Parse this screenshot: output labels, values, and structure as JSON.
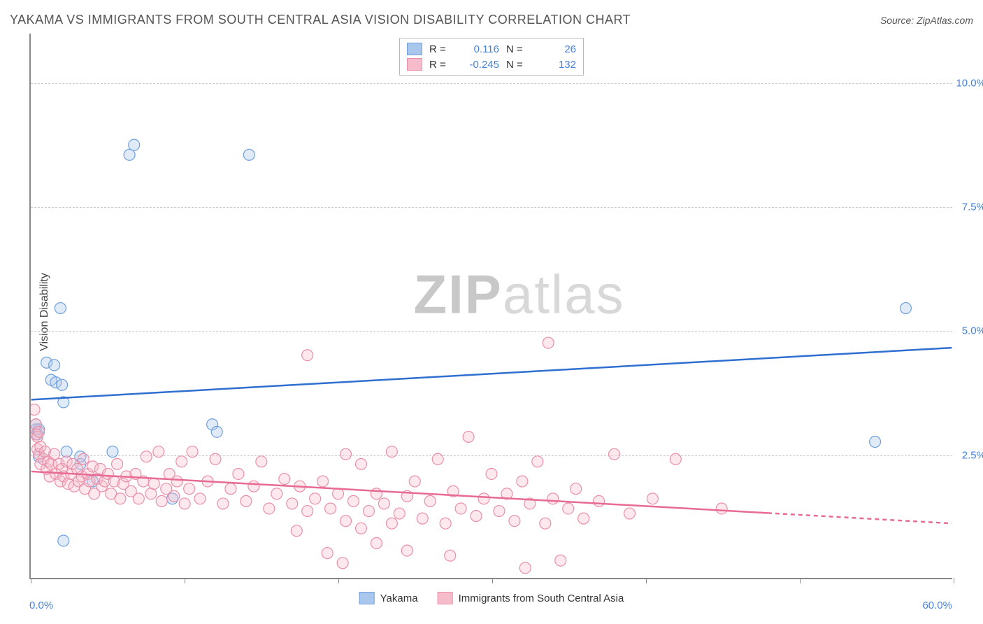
{
  "title": "YAKAMA VS IMMIGRANTS FROM SOUTH CENTRAL ASIA VISION DISABILITY CORRELATION CHART",
  "source": "Source: ZipAtlas.com",
  "y_axis_label": "Vision Disability",
  "watermark_bold": "ZIP",
  "watermark_rest": "atlas",
  "chart": {
    "type": "scatter",
    "background_color": "#ffffff",
    "grid_color": "#cccccc",
    "axis_color": "#888888",
    "tick_label_color": "#4682d8",
    "xlim": [
      0,
      60
    ],
    "ylim": [
      0,
      11
    ],
    "x_min_label": "0.0%",
    "x_max_label": "60.0%",
    "y_ticks": [
      2.5,
      5.0,
      7.5,
      10.0
    ],
    "y_tick_labels": [
      "2.5%",
      "5.0%",
      "7.5%",
      "10.0%"
    ],
    "x_tick_positions": [
      0,
      10,
      20,
      30,
      40,
      50,
      60
    ],
    "marker_radius": 8,
    "marker_fill_opacity": 0.35,
    "marker_stroke_width": 1.2,
    "series": [
      {
        "name": "Yakama",
        "color_fill": "#a9c6ec",
        "color_stroke": "#6fa0dd",
        "line_color": "#2f6fd0",
        "line_width": 2.5,
        "R": "0.116",
        "N": "26",
        "trend": {
          "x1": 0,
          "y1": 3.6,
          "x2": 60,
          "y2": 4.65
        },
        "points": [
          [
            0.3,
            3.0
          ],
          [
            0.3,
            3.1
          ],
          [
            0.4,
            2.9
          ],
          [
            0.5,
            3.0
          ],
          [
            0.5,
            2.45
          ],
          [
            1.0,
            4.35
          ],
          [
            1.3,
            4.0
          ],
          [
            1.5,
            4.3
          ],
          [
            1.6,
            3.95
          ],
          [
            1.9,
            5.45
          ],
          [
            2.0,
            3.9
          ],
          [
            2.1,
            3.55
          ],
          [
            2.3,
            2.55
          ],
          [
            2.1,
            0.75
          ],
          [
            3.2,
            2.3
          ],
          [
            3.2,
            2.45
          ],
          [
            4.0,
            1.95
          ],
          [
            5.3,
            2.55
          ],
          [
            6.4,
            8.55
          ],
          [
            6.7,
            8.75
          ],
          [
            9.2,
            1.6
          ],
          [
            11.8,
            3.1
          ],
          [
            12.1,
            2.95
          ],
          [
            14.2,
            8.55
          ],
          [
            55.0,
            2.75
          ],
          [
            57.0,
            5.45
          ]
        ]
      },
      {
        "name": "Immigrants from South Central Asia",
        "color_fill": "#f6bccb",
        "color_stroke": "#e98fa9",
        "line_color": "#e76b93",
        "line_width": 2.5,
        "line_dash_from_x": 48,
        "R": "-0.245",
        "N": "132",
        "trend": {
          "x1": 0,
          "y1": 2.15,
          "x2": 60,
          "y2": 1.1
        },
        "points": [
          [
            0.2,
            3.4
          ],
          [
            0.3,
            3.1
          ],
          [
            0.3,
            2.9
          ],
          [
            0.4,
            2.85
          ],
          [
            0.4,
            2.6
          ],
          [
            0.5,
            2.95
          ],
          [
            0.5,
            2.5
          ],
          [
            0.6,
            2.65
          ],
          [
            0.6,
            2.3
          ],
          [
            0.8,
            2.4
          ],
          [
            0.9,
            2.55
          ],
          [
            1.0,
            2.2
          ],
          [
            1.1,
            2.35
          ],
          [
            1.2,
            2.05
          ],
          [
            1.3,
            2.3
          ],
          [
            1.5,
            2.5
          ],
          [
            1.6,
            2.1
          ],
          [
            1.8,
            2.3
          ],
          [
            1.9,
            1.95
          ],
          [
            2.0,
            2.2
          ],
          [
            2.1,
            2.05
          ],
          [
            2.3,
            2.35
          ],
          [
            2.4,
            1.9
          ],
          [
            2.6,
            2.1
          ],
          [
            2.7,
            2.3
          ],
          [
            2.8,
            1.85
          ],
          [
            3.0,
            2.2
          ],
          [
            3.1,
            1.95
          ],
          [
            3.3,
            2.05
          ],
          [
            3.4,
            2.4
          ],
          [
            3.5,
            1.8
          ],
          [
            3.7,
            2.1
          ],
          [
            3.8,
            1.95
          ],
          [
            4.0,
            2.25
          ],
          [
            4.1,
            1.7
          ],
          [
            4.3,
            2.0
          ],
          [
            4.5,
            2.2
          ],
          [
            4.6,
            1.85
          ],
          [
            4.8,
            1.95
          ],
          [
            5.0,
            2.1
          ],
          [
            5.2,
            1.7
          ],
          [
            5.4,
            1.95
          ],
          [
            5.6,
            2.3
          ],
          [
            5.8,
            1.6
          ],
          [
            6.0,
            1.9
          ],
          [
            6.2,
            2.05
          ],
          [
            6.5,
            1.75
          ],
          [
            6.8,
            2.1
          ],
          [
            7.0,
            1.6
          ],
          [
            7.3,
            1.95
          ],
          [
            7.5,
            2.45
          ],
          [
            7.8,
            1.7
          ],
          [
            8.0,
            1.9
          ],
          [
            8.3,
            2.55
          ],
          [
            8.5,
            1.55
          ],
          [
            8.8,
            1.8
          ],
          [
            9.0,
            2.1
          ],
          [
            9.3,
            1.65
          ],
          [
            9.5,
            1.95
          ],
          [
            9.8,
            2.35
          ],
          [
            10.0,
            1.5
          ],
          [
            10.3,
            1.8
          ],
          [
            10.5,
            2.55
          ],
          [
            11.0,
            1.6
          ],
          [
            11.5,
            1.95
          ],
          [
            12.0,
            2.4
          ],
          [
            12.5,
            1.5
          ],
          [
            13.0,
            1.8
          ],
          [
            13.5,
            2.1
          ],
          [
            14.0,
            1.55
          ],
          [
            14.5,
            1.85
          ],
          [
            15.0,
            2.35
          ],
          [
            15.5,
            1.4
          ],
          [
            16.0,
            1.7
          ],
          [
            16.5,
            2.0
          ],
          [
            17.0,
            1.5
          ],
          [
            17.3,
            0.95
          ],
          [
            17.5,
            1.85
          ],
          [
            18.0,
            4.5
          ],
          [
            18.0,
            1.35
          ],
          [
            18.5,
            1.6
          ],
          [
            19.0,
            1.95
          ],
          [
            19.3,
            0.5
          ],
          [
            19.5,
            1.4
          ],
          [
            20.0,
            1.7
          ],
          [
            20.3,
            0.3
          ],
          [
            20.5,
            2.5
          ],
          [
            20.5,
            1.15
          ],
          [
            21.0,
            1.55
          ],
          [
            21.5,
            2.3
          ],
          [
            21.5,
            1.0
          ],
          [
            22.0,
            1.35
          ],
          [
            22.5,
            1.7
          ],
          [
            22.5,
            0.7
          ],
          [
            23.0,
            1.5
          ],
          [
            23.5,
            2.55
          ],
          [
            23.5,
            1.1
          ],
          [
            24.0,
            1.3
          ],
          [
            24.5,
            0.55
          ],
          [
            24.5,
            1.65
          ],
          [
            25.0,
            1.95
          ],
          [
            25.5,
            1.2
          ],
          [
            26.0,
            1.55
          ],
          [
            26.5,
            2.4
          ],
          [
            27.0,
            1.1
          ],
          [
            27.3,
            0.45
          ],
          [
            27.5,
            1.75
          ],
          [
            28.0,
            1.4
          ],
          [
            28.5,
            2.85
          ],
          [
            29.0,
            1.25
          ],
          [
            29.5,
            1.6
          ],
          [
            30.0,
            2.1
          ],
          [
            30.5,
            1.35
          ],
          [
            31.0,
            1.7
          ],
          [
            31.5,
            1.15
          ],
          [
            32.0,
            1.95
          ],
          [
            32.2,
            0.2
          ],
          [
            32.5,
            1.5
          ],
          [
            33.0,
            2.35
          ],
          [
            33.5,
            1.1
          ],
          [
            33.7,
            4.75
          ],
          [
            34.0,
            1.6
          ],
          [
            34.5,
            0.35
          ],
          [
            35.0,
            1.4
          ],
          [
            35.5,
            1.8
          ],
          [
            36.0,
            1.2
          ],
          [
            37.0,
            1.55
          ],
          [
            38.0,
            2.5
          ],
          [
            39.0,
            1.3
          ],
          [
            40.5,
            1.6
          ],
          [
            42.0,
            2.4
          ],
          [
            45.0,
            1.4
          ]
        ]
      }
    ]
  },
  "legend_bottom": [
    {
      "label": "Yakama",
      "fill": "#a9c6ec",
      "stroke": "#6fa0dd"
    },
    {
      "label": "Immigrants from South Central Asia",
      "fill": "#f6bccb",
      "stroke": "#e98fa9"
    }
  ]
}
